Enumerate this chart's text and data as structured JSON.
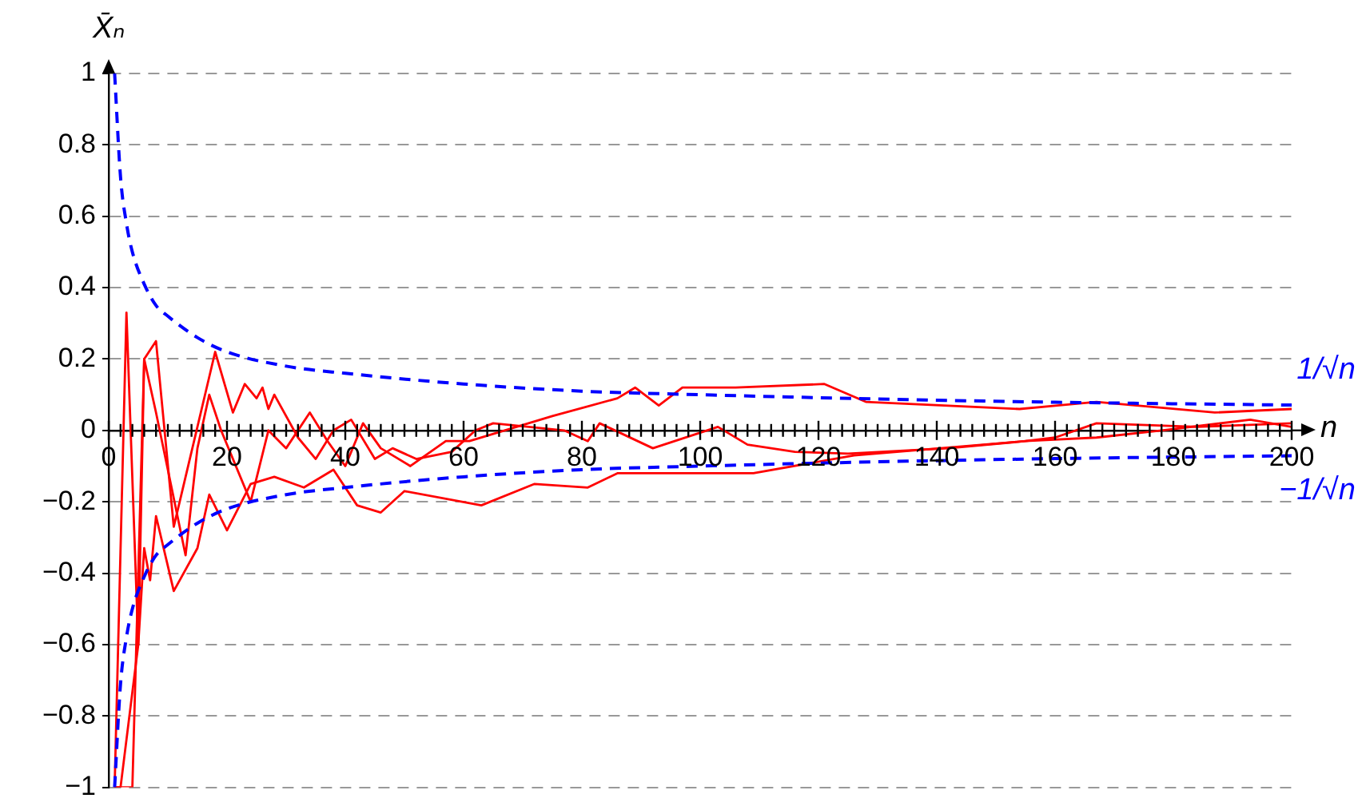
{
  "chart_data": {
    "type": "line",
    "xlabel": "n",
    "ylabel": "X̄ₙ",
    "xlim": [
      0,
      200
    ],
    "ylim": [
      -1,
      1
    ],
    "xticks": [
      0,
      {
        "value": 2,
        "label": null
      },
      {
        "value": 4,
        "label": null
      },
      {
        "value": 6,
        "label": null
      },
      {
        "value": 8,
        "label": null
      },
      {
        "value": 10,
        "label": null
      },
      {
        "value": 12,
        "label": null
      },
      {
        "value": 14,
        "label": null
      },
      {
        "value": 16,
        "label": null
      },
      {
        "value": 18,
        "label": null
      },
      20,
      {
        "value": 22,
        "label": null
      },
      {
        "value": 24,
        "label": null
      },
      {
        "value": 26,
        "label": null
      },
      {
        "value": 28,
        "label": null
      },
      {
        "value": 30,
        "label": null
      },
      {
        "value": 32,
        "label": null
      },
      {
        "value": 34,
        "label": null
      },
      {
        "value": 36,
        "label": null
      },
      {
        "value": 38,
        "label": null
      },
      40,
      {
        "value": 42,
        "label": null
      },
      {
        "value": 44,
        "label": null
      },
      {
        "value": 46,
        "label": null
      },
      {
        "value": 48,
        "label": null
      },
      {
        "value": 50,
        "label": null
      },
      {
        "value": 52,
        "label": null
      },
      {
        "value": 54,
        "label": null
      },
      {
        "value": 56,
        "label": null
      },
      {
        "value": 58,
        "label": null
      },
      60,
      {
        "value": 62,
        "label": null
      },
      {
        "value": 64,
        "label": null
      },
      {
        "value": 66,
        "label": null
      },
      {
        "value": 68,
        "label": null
      },
      {
        "value": 70,
        "label": null
      },
      {
        "value": 72,
        "label": null
      },
      {
        "value": 74,
        "label": null
      },
      {
        "value": 76,
        "label": null
      },
      {
        "value": 78,
        "label": null
      },
      80,
      {
        "value": 82,
        "label": null
      },
      {
        "value": 84,
        "label": null
      },
      {
        "value": 86,
        "label": null
      },
      {
        "value": 88,
        "label": null
      },
      {
        "value": 90,
        "label": null
      },
      {
        "value": 92,
        "label": null
      },
      {
        "value": 94,
        "label": null
      },
      {
        "value": 96,
        "label": null
      },
      {
        "value": 98,
        "label": null
      },
      100,
      {
        "value": 102,
        "label": null
      },
      {
        "value": 104,
        "label": null
      },
      {
        "value": 106,
        "label": null
      },
      {
        "value": 108,
        "label": null
      },
      {
        "value": 110,
        "label": null
      },
      {
        "value": 112,
        "label": null
      },
      {
        "value": 114,
        "label": null
      },
      {
        "value": 116,
        "label": null
      },
      {
        "value": 118,
        "label": null
      },
      120,
      {
        "value": 122,
        "label": null
      },
      {
        "value": 124,
        "label": null
      },
      {
        "value": 126,
        "label": null
      },
      {
        "value": 128,
        "label": null
      },
      {
        "value": 130,
        "label": null
      },
      {
        "value": 132,
        "label": null
      },
      {
        "value": 134,
        "label": null
      },
      {
        "value": 136,
        "label": null
      },
      {
        "value": 138,
        "label": null
      },
      140,
      {
        "value": 142,
        "label": null
      },
      {
        "value": 144,
        "label": null
      },
      {
        "value": 146,
        "label": null
      },
      {
        "value": 148,
        "label": null
      },
      {
        "value": 150,
        "label": null
      },
      {
        "value": 152,
        "label": null
      },
      {
        "value": 154,
        "label": null
      },
      {
        "value": 156,
        "label": null
      },
      {
        "value": 158,
        "label": null
      },
      160,
      {
        "value": 162,
        "label": null
      },
      {
        "value": 164,
        "label": null
      },
      {
        "value": 166,
        "label": null
      },
      {
        "value": 168,
        "label": null
      },
      {
        "value": 170,
        "label": null
      },
      {
        "value": 172,
        "label": null
      },
      {
        "value": 174,
        "label": null
      },
      {
        "value": 176,
        "label": null
      },
      {
        "value": 178,
        "label": null
      },
      180,
      {
        "value": 182,
        "label": null
      },
      {
        "value": 184,
        "label": null
      },
      {
        "value": 186,
        "label": null
      },
      {
        "value": 188,
        "label": null
      },
      {
        "value": 190,
        "label": null
      },
      {
        "value": 192,
        "label": null
      },
      {
        "value": 194,
        "label": null
      },
      {
        "value": 196,
        "label": null
      },
      {
        "value": 198,
        "label": null
      },
      200
    ],
    "yticks": [
      {
        "value": -1,
        "label": "−1"
      },
      {
        "value": -0.8,
        "label": "−0.8"
      },
      {
        "value": -0.6,
        "label": "−0.6"
      },
      {
        "value": -0.4,
        "label": "−0.4"
      },
      {
        "value": -0.2,
        "label": "−0.2"
      },
      0,
      0.2,
      0.4,
      0.6,
      0.8,
      1
    ],
    "grid": "y",
    "legend": false,
    "marker": "none",
    "line_style": "solid",
    "series": [
      {
        "name": "1/√n",
        "color": "#0000ff",
        "line_style": "dashed",
        "x": [
          1,
          2,
          3,
          4,
          6,
          8,
          10,
          15,
          20,
          30,
          40,
          60,
          80,
          100,
          130,
          160,
          200
        ],
        "values": [
          1,
          0.71,
          0.58,
          0.5,
          0.41,
          0.35,
          0.32,
          0.26,
          0.22,
          0.18,
          0.16,
          0.13,
          0.11,
          0.1,
          0.088,
          0.079,
          0.071
        ]
      },
      {
        "name": "−1/√n",
        "color": "#0000ff",
        "line_style": "dashed",
        "x": [
          1,
          2,
          3,
          4,
          6,
          8,
          10,
          15,
          20,
          30,
          40,
          60,
          80,
          100,
          130,
          160,
          200
        ],
        "values": [
          -1,
          -0.71,
          -0.58,
          -0.5,
          -0.41,
          -0.35,
          -0.32,
          -0.26,
          -0.22,
          -0.18,
          -0.16,
          -0.13,
          -0.11,
          -0.1,
          -0.088,
          -0.079,
          -0.071
        ]
      },
      {
        "color": "#ff0000",
        "x": [
          1,
          3,
          5,
          6,
          8,
          11,
          18,
          21,
          23,
          25,
          26,
          27,
          28,
          32,
          35,
          38,
          41,
          45,
          48,
          52,
          58,
          62,
          65,
          77,
          81,
          83,
          92,
          103,
          108,
          116,
          125,
          142,
          155,
          160,
          167,
          184,
          200
        ],
        "values": [
          -1,
          0.33,
          -0.6,
          0.2,
          0.25,
          -0.27,
          0.22,
          0.05,
          0.13,
          0.09,
          0.12,
          0.06,
          0.1,
          -0.02,
          -0.08,
          0,
          0.03,
          -0.08,
          -0.05,
          -0.08,
          -0.06,
          0,
          0.02,
          0,
          -0.03,
          0.02,
          -0.05,
          0.01,
          -0.04,
          -0.06,
          -0.065,
          -0.05,
          -0.03,
          -0.02,
          0.02,
          0.01,
          0.02
        ]
      },
      {
        "color": "#ff0000",
        "x": [
          1,
          4,
          6,
          8,
          13,
          15,
          17,
          19,
          24,
          27,
          30,
          34,
          37,
          40,
          43,
          46,
          51,
          57,
          61,
          75,
          86,
          89,
          93,
          97,
          106,
          121,
          128,
          154,
          167,
          187,
          200
        ],
        "values": [
          -1,
          -1,
          0.2,
          0.05,
          -0.35,
          -0.05,
          0.1,
          0,
          -0.2,
          0,
          -0.05,
          0.05,
          -0.03,
          -0.1,
          0.02,
          -0.05,
          -0.1,
          -0.03,
          -0.03,
          0.04,
          0.09,
          0.12,
          0.07,
          0.12,
          0.12,
          0.13,
          0.08,
          0.06,
          0.08,
          0.05,
          0.06
        ]
      },
      {
        "color": "#ff0000",
        "x": [
          1,
          2,
          5,
          6,
          7,
          8,
          11,
          15,
          17,
          20,
          24,
          28,
          33,
          38,
          42,
          46,
          50,
          63,
          72,
          81,
          86,
          95,
          109,
          126,
          155,
          167,
          178,
          193,
          200
        ],
        "values": [
          -1,
          -1,
          -0.6,
          -0.33,
          -0.42,
          -0.24,
          -0.45,
          -0.33,
          -0.18,
          -0.28,
          -0.15,
          -0.13,
          -0.16,
          -0.11,
          -0.21,
          -0.23,
          -0.17,
          -0.21,
          -0.15,
          -0.16,
          -0.12,
          -0.12,
          -0.12,
          -0.07,
          -0.03,
          -0.02,
          0,
          0.03,
          0.01
        ]
      }
    ]
  }
}
